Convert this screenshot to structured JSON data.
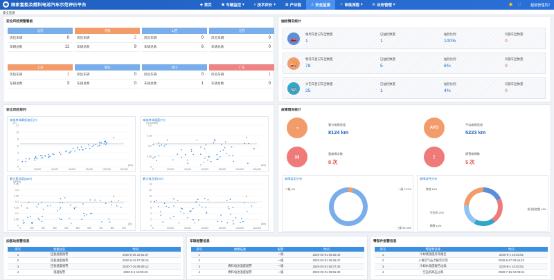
{
  "header": {
    "title": "国家氢能及燃料电池汽车示范评价平台",
    "user": "超级管理员2"
  },
  "nav": [
    {
      "icon": "◆",
      "label": "首页"
    },
    {
      "icon": "▣",
      "label": "车辆监控",
      "caret": "▾"
    },
    {
      "icon": "≡",
      "label": "技术评价",
      "caret": "▾"
    },
    {
      "icon": "▦",
      "label": "产业链"
    },
    {
      "icon": "⚠",
      "label": "安全监测"
    },
    {
      "icon": "⚐",
      "label": "审核流程",
      "caret": "▾"
    },
    {
      "icon": "⚙",
      "label": "业务管理",
      "caret": "▾"
    }
  ],
  "breadcrumb": "安全监测",
  "risk": {
    "title": "安全风险预警看板",
    "row_labels": [
      "风险车辆",
      "车辆总数"
    ],
    "cards": [
      {
        "name": "北京",
        "color": "#7aaeea",
        "risk": "0",
        "total": "11"
      },
      {
        "name": "河南",
        "color": "#f29c6b",
        "risk": "2",
        "total": "9"
      },
      {
        "name": "山西",
        "color": "#7aaeea",
        "risk": "0",
        "total": "6"
      },
      {
        "name": "江苏",
        "color": "#7aaeea",
        "risk": "0",
        "total": "0"
      },
      {
        "name": "上海",
        "color": "#f29c6b",
        "risk": "1",
        "total": "3"
      },
      {
        "name": "湖北",
        "color": "#7aaeea",
        "risk": "0",
        "total": "0"
      },
      {
        "name": "四川",
        "color": "#7aaeea",
        "risk": "0",
        "total": "1"
      },
      {
        "name": "广东",
        "color": "#ef8484",
        "risk": "1",
        "total": "0"
      }
    ]
  },
  "vehicles": {
    "title": "抽检情况统计",
    "rows": [
      {
        "icon": "car-icon",
        "icon_glyph": "🚗",
        "color": "#5b8fd8",
        "type_label": "乘用车登记车型数量",
        "type_value": "1",
        "check_label": "已抽检数量",
        "check_value": "1",
        "ratio_label": "抽检比例",
        "ratio_value": "100%",
        "prob_label": "问题车型数量",
        "prob_value": "0"
      },
      {
        "icon": "truck-icon",
        "icon_glyph": "🚚",
        "color": "#f29c6b",
        "type_label": "物流车登记车型数量",
        "type_value": "78",
        "check_label": "已抽检数量",
        "check_value": "5",
        "ratio_label": "抽检比例",
        "ratio_value": "6%",
        "prob_label": "问题车型数量",
        "prob_value": "0"
      },
      {
        "icon": "bus-icon",
        "icon_glyph": "🚌",
        "color": "#33a5c9",
        "type_label": "大巴车登记车型数量",
        "type_value": "25",
        "check_label": "已抽检数量",
        "check_value": "1",
        "ratio_label": "抽检比例",
        "ratio_value": "4%",
        "prob_label": "问题车型数量",
        "prob_value": "0"
      }
    ]
  },
  "safety": {
    "title": "安全风险排列",
    "charts": [
      {
        "label": "电堆单体最低电压(V)",
        "unit": "(V)",
        "xunit": "(km)",
        "yticks": [
          "12",
          "10",
          "8",
          "6",
          "4",
          "2",
          "0"
        ],
        "xticks": [
          "0",
          "20,000",
          "40,000",
          "60,000",
          "80,000",
          "100,000",
          "120,000"
        ]
      },
      {
        "label": "电堆单体温度(℃)",
        "unit": "(%/100km)",
        "xunit": "(km)",
        "yticks": [
          "0.2",
          "0.15",
          "0.1",
          "0.05",
          "0"
        ],
        "xticks": [
          "0",
          "20,000",
          "40,000",
          "60,000",
          "80,000",
          "100,000",
          "120,000"
        ]
      },
      {
        "label": "最大氢浓度(ppm)",
        "unit": "(kPa/h)",
        "xunit": "(天)",
        "yticks": [
          "0.35",
          "0.3",
          "0.25",
          "0.2",
          "0.15",
          "0.1",
          "0.05",
          "0"
        ],
        "xticks": [
          "0",
          "100",
          "200",
          "300",
          "400",
          "500",
          "600",
          "700",
          "800",
          "900"
        ]
      },
      {
        "label": "最大电压差(mV)",
        "unit": "",
        "xunit": "(km)",
        "yticks": [
          "14",
          "12",
          "10",
          "8",
          "6",
          "4",
          "2",
          "0"
        ],
        "xticks": [
          "0",
          "20,000",
          "40,000",
          "60,000",
          "80,000",
          "100,000",
          "120,000"
        ]
      }
    ]
  },
  "fault": {
    "title": "故障情况统计",
    "stats": [
      {
        "icon": "gauge-icon",
        "glyph": "◔",
        "color": "#f29c6b",
        "label": "累计故障里程",
        "value": "8124 km"
      },
      {
        "icon": "avg-icon",
        "glyph": "AVG",
        "color": "#f29c6b",
        "label": "平均故障里程",
        "value": "5223 km"
      },
      {
        "icon": "hydrogen-icon",
        "glyph": "H",
        "color": "#ef7a7a",
        "label": "氢故障次数",
        "value": "8 次"
      },
      {
        "icon": "warning-icon",
        "glyph": "!",
        "color": "#ef7a7a",
        "label": "报警故障数",
        "value": "5 次"
      }
    ],
    "donut1": {
      "label": "故障类型分布",
      "slices": [
        {
          "name": "二级",
          "text": "二级 4%",
          "value": 4,
          "color": "#f29c6b"
        },
        {
          "name": "一级",
          "text": "一级 0.07%",
          "value": 0.07,
          "color": "#ef7a7a"
        },
        {
          "name": "三级",
          "text": "三级 95.93%",
          "value": 95.93,
          "color": "#7aaeea"
        }
      ]
    },
    "donut2": {
      "label": "故障部件分布",
      "slices": [
        {
          "name": "其他",
          "text": "其他 18%",
          "value": 18,
          "color": "#5b8fd8"
        },
        {
          "name": "空压机",
          "text": "空压机 22%",
          "value": 22,
          "color": "#ef7a7a"
        },
        {
          "name": "稀释",
          "text": "稀释 18%",
          "value": 18,
          "color": "#33a5c9"
        },
        {
          "name": "发动机控制",
          "text": "发动机控制 18%",
          "value": 18,
          "color": "#8fc3f4"
        },
        {
          "name": "其他2",
          "text": "",
          "value": 24,
          "color": "#f29c6b"
        }
      ]
    }
  },
  "tables": [
    {
      "title": "加氢站报警信息",
      "cols": [
        "序号",
        "加氢站名",
        "时间"
      ],
      "rows": [
        [
          "1",
          "佳氢速度报警",
          "2020-8-25 12:51:07"
        ],
        [
          "2",
          "佳氢速度报警",
          "2020-6-19 07:28:15"
        ],
        [
          "3",
          "佳氢速度报警",
          "2020-7-15 09:09:12"
        ],
        [
          "4",
          "温度报警",
          "2020-8-4 10:05:23"
        ]
      ]
    },
    {
      "title": "车辆报警信息",
      "cols": [
        "序号",
        "故障描述",
        "报警",
        "时间"
      ],
      "rows": [
        [
          "1",
          "",
          "一级",
          "2020-03-01 08:26:40"
        ],
        [
          "2",
          "",
          "一级",
          "2020-03-01 08:36:47"
        ],
        [
          "3",
          "燃料电池温度报警",
          "一级",
          "2020-03-01 08:37:40"
        ],
        [
          "4",
          "燃料电池温度报警",
          "一级",
          "2020-03-01 08:51:33"
        ]
      ]
    },
    {
      "title": "零部件报警信息",
      "cols": [
        "序号",
        "零部件名称",
        "时间"
      ],
      "rows": [
        [
          "1",
          "冷却液温度异常报告",
          "2020-9-1 10:03:52"
        ],
        [
          "2",
          "入堆空气压力报告异常",
          "2020-8-17 09:44:22"
        ],
        [
          "3",
          "冷却水温度报告过高",
          "2020-9-1 10:03:52"
        ],
        [
          "4",
          "空压机高压过高",
          "2020-7-16 04:09:34"
        ]
      ]
    }
  ]
}
